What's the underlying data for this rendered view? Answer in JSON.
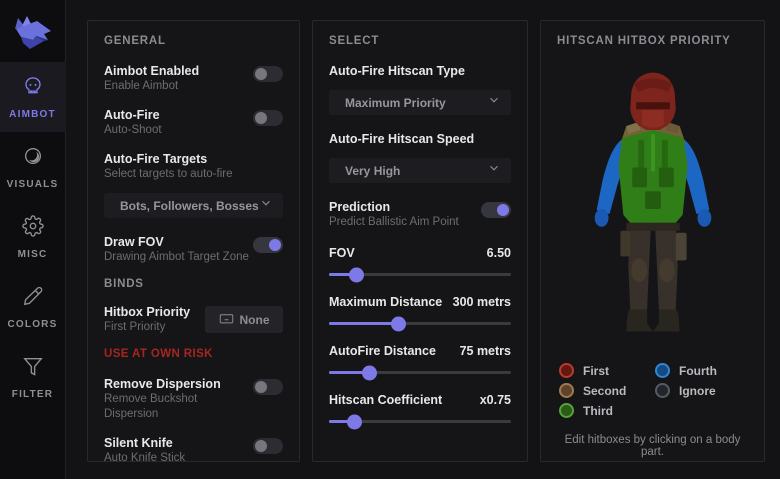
{
  "colors": {
    "accent": "#7d7ae8",
    "warning_red": "#a8251f",
    "sidebar_active_bg": "#1a1a20"
  },
  "sidebar": {
    "items": [
      {
        "label": "AIMBOT",
        "icon": "skull-icon",
        "state": "active"
      },
      {
        "label": "VISUALS",
        "icon": "contrast-icon",
        "state": "default"
      },
      {
        "label": "MISC",
        "icon": "gear-icon",
        "state": "default"
      },
      {
        "label": "COLORS",
        "icon": "eyedropper-icon",
        "state": "default"
      },
      {
        "label": "FILTER",
        "icon": "funnel-icon",
        "state": "default"
      }
    ],
    "logo_icon": "wolf-logo"
  },
  "general": {
    "title": "GENERAL",
    "rows": [
      {
        "title": "Aimbot Enabled",
        "subtitle": "Enable Aimbot",
        "state": "off"
      },
      {
        "title": "Auto-Fire",
        "subtitle": "Auto-Shoot",
        "state": "off"
      },
      {
        "title": "Auto-Fire Targets",
        "subtitle": "Select targets to auto-fire",
        "dropdown": "Bots, Followers, Bosses"
      },
      {
        "title": "Draw FOV",
        "subtitle": "Drawing Aimbot Target Zone",
        "state": "on"
      }
    ],
    "binds_title": "BINDS",
    "bind": {
      "title": "Hitbox Priority",
      "subtitle": "First Priority",
      "button_label": "None",
      "button_icon": "keyboard-icon"
    },
    "warning": "USE AT OWN RISK",
    "risk_rows": [
      {
        "title": "Remove Dispersion",
        "subtitle": "Remove Buckshot Dispersion",
        "state": "off"
      },
      {
        "title": "Silent Knife",
        "subtitle": "Auto Knife Stick",
        "state": "off"
      }
    ]
  },
  "select": {
    "title": "SELECT",
    "fields": [
      {
        "label": "Auto-Fire Hitscan Type",
        "value": "Maximum Priority"
      },
      {
        "label": "Auto-Fire Hitscan Speed",
        "value": "Very High"
      }
    ],
    "prediction": {
      "title": "Prediction",
      "subtitle": "Predict Ballistic Aim Point",
      "state": "on"
    },
    "sliders": [
      {
        "label": "FOV",
        "value": "6.50",
        "percent": 15
      },
      {
        "label": "Maximum Distance",
        "value": "300 metrs",
        "percent": 38
      },
      {
        "label": "AutoFire Distance",
        "value": "75 metrs",
        "percent": 22
      },
      {
        "label": "Hitscan Coefficient",
        "value": "x0.75",
        "percent": 14
      }
    ]
  },
  "hitbox": {
    "title": "HITSCAN HITBOX PRIORITY",
    "legend": [
      {
        "label": "First",
        "ring": "#bb3a2e",
        "fill": "#63190f"
      },
      {
        "label": "Fourth",
        "ring": "#2e86d6",
        "fill": "#154a80"
      },
      {
        "label": "Second",
        "ring": "#a07a4e",
        "fill": "#5c432a"
      },
      {
        "label": "Ignore",
        "ring": "#555a64",
        "fill": "#22262c"
      },
      {
        "label": "Third",
        "ring": "#55a23a",
        "fill": "#2a5c18"
      }
    ],
    "model_colors": {
      "head_first": "#7d241d",
      "shoulders_second": "#75603a",
      "torso_third": "#2f7e17",
      "arms_fourth": "#1c66c4",
      "legs_ignore": "#38302a"
    },
    "hint": "Edit hitboxes by clicking on a body part."
  }
}
